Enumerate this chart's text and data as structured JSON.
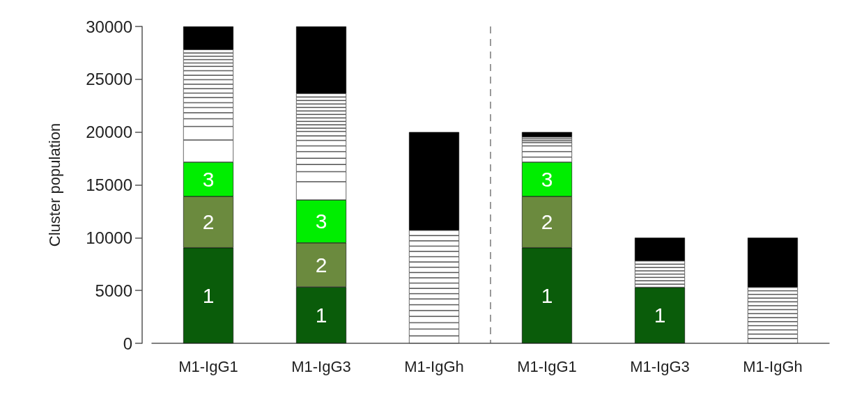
{
  "chart_data": {
    "type": "bar",
    "stacked": true,
    "ylabel": "Cluster population",
    "categories": [
      "M1-IgG1",
      "M1-IgG3",
      "M1-IgGh",
      "M1-IgG1",
      "M1-IgG3",
      "M1-IgGh"
    ],
    "ylim": [
      0,
      30000
    ],
    "yticks": [
      0,
      5000,
      10000,
      15000,
      20000,
      25000,
      30000
    ],
    "series": [
      {
        "name": "1",
        "color": "#0a5c0a",
        "values": [
          9050,
          5330,
          null,
          9050,
          5300,
          null
        ]
      },
      {
        "name": "2",
        "color": "#6b8a3e",
        "values": [
          4850,
          4180,
          null,
          4850,
          null,
          null
        ]
      },
      {
        "name": "3",
        "color": "#00ee00",
        "values": [
          3250,
          4060,
          null,
          3250,
          null,
          null
        ]
      },
      {
        "color": "#ffffff",
        "values": [
          2100,
          1730,
          700,
          480,
          300,
          450
        ]
      },
      {
        "color": "#ffffff",
        "values": [
          1280,
          950,
          650,
          520,
          320,
          420
        ]
      },
      {
        "color": "#ffffff",
        "values": [
          730,
          680,
          600,
          540,
          320,
          400
        ]
      },
      {
        "color": "#ffffff",
        "values": [
          570,
          590,
          600,
          310,
          310,
          400
        ]
      },
      {
        "color": "#ffffff",
        "values": [
          490,
          630,
          550,
          180,
          310,
          380
        ]
      },
      {
        "color": "#ffffff",
        "values": [
          460,
          540,
          550,
          180,
          320,
          380
        ]
      },
      {
        "color": "#ffffff",
        "values": [
          490,
          520,
          550,
          170,
          310,
          380
        ]
      },
      {
        "color": "#ffffff",
        "values": [
          420,
          430,
          500,
          null,
          310,
          380
        ]
      },
      {
        "color": "#ffffff",
        "values": [
          420,
          420,
          500,
          null,
          null,
          370
        ]
      },
      {
        "color": "#ffffff",
        "values": [
          420,
          310,
          500,
          null,
          null,
          370
        ]
      },
      {
        "color": "#ffffff",
        "values": [
          430,
          320,
          500,
          null,
          null,
          350
        ]
      },
      {
        "color": "#ffffff",
        "values": [
          420,
          320,
          500,
          null,
          null,
          350
        ]
      },
      {
        "color": "#ffffff",
        "values": [
          430,
          330,
          500,
          null,
          null,
          340
        ]
      },
      {
        "color": "#ffffff",
        "values": [
          410,
          330,
          500,
          null,
          null,
          330
        ]
      },
      {
        "color": "#ffffff",
        "values": [
          320,
          330,
          500,
          null,
          null,
          null
        ]
      },
      {
        "color": "#ffffff",
        "values": [
          320,
          330,
          500,
          null,
          null,
          null
        ]
      },
      {
        "color": "#ffffff",
        "values": [
          320,
          330,
          500,
          null,
          null,
          null
        ]
      },
      {
        "color": "#ffffff",
        "values": [
          310,
          330,
          500,
          null,
          null,
          null
        ]
      },
      {
        "color": "#ffffff",
        "values": [
          320,
          330,
          500,
          null,
          null,
          null
        ]
      },
      {
        "color": "#ffffff",
        "values": [
          null,
          330,
          500,
          null,
          null,
          null
        ]
      },
      {
        "color": "#000000",
        "values": [
          2190,
          6350,
          9300,
          470,
          2200,
          4700
        ]
      }
    ]
  }
}
